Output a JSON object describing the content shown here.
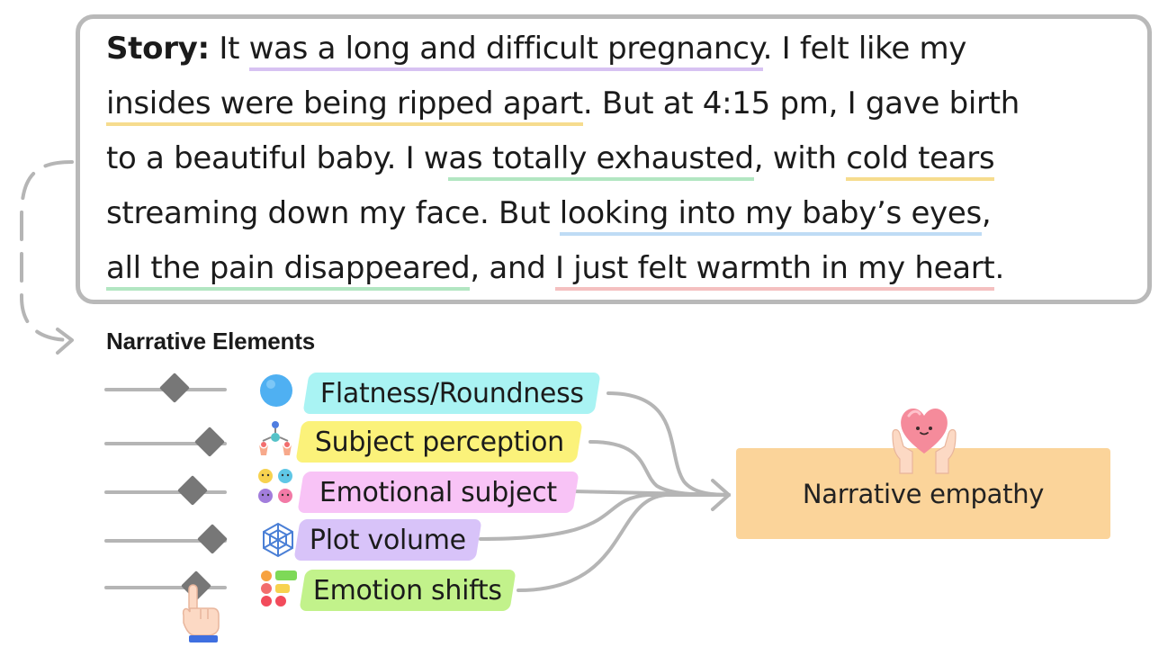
{
  "story": {
    "label": "Story:",
    "lines": [
      [
        {
          "t": " It ",
          "c": ""
        },
        {
          "t": "was a long and difficult pregnancy",
          "c": "purple"
        },
        {
          "t": ". I felt like my",
          "c": ""
        }
      ],
      [
        {
          "t": "insides were being ripped apart",
          "c": "yellow"
        },
        {
          "t": ". But at 4:15 pm, I gave birth",
          "c": ""
        }
      ],
      [
        {
          "t": "to a beautiful baby. I w",
          "c": ""
        },
        {
          "t": "as totally exhausted",
          "c": "green"
        },
        {
          "t": ", with ",
          "c": ""
        },
        {
          "t": "cold tears",
          "c": "yellow"
        }
      ],
      [
        {
          "t": "streaming down my face. But ",
          "c": ""
        },
        {
          "t": "looking into my baby’s eyes",
          "c": "blue"
        },
        {
          "t": ",",
          "c": ""
        }
      ],
      [
        {
          "t": "all the pain disappeared",
          "c": "green"
        },
        {
          "t": ", and ",
          "c": ""
        },
        {
          "t": "I just felt warmth in my heart",
          "c": "red"
        },
        {
          "t": ".",
          "c": ""
        }
      ]
    ]
  },
  "narrative": {
    "title": "Narrative Elements",
    "elements": [
      {
        "label": "Flatness/Roundness",
        "color": "#a9f3f3",
        "icon": "circle-icon",
        "slider": 0.57
      },
      {
        "label": "Subject perception",
        "color": "#fbf27a",
        "icon": "perception-icon",
        "slider": 0.86
      },
      {
        "label": "Emotional subject",
        "color": "#f8c3f6",
        "icon": "emoji-faces-icon",
        "slider": 0.72
      },
      {
        "label": "Plot volume",
        "color": "#d8c3f9",
        "icon": "web-cube-icon",
        "slider": 0.88
      },
      {
        "label": "Emotion shifts",
        "color": "#c2f28b",
        "icon": "emotion-shift-icon",
        "slider": 0.75
      }
    ]
  },
  "output": {
    "label": "Narrative empathy"
  },
  "colors": {
    "line": "#b5b5b5",
    "box_border": "#b9b9b9",
    "empathy_fill": "#fbd49a"
  }
}
